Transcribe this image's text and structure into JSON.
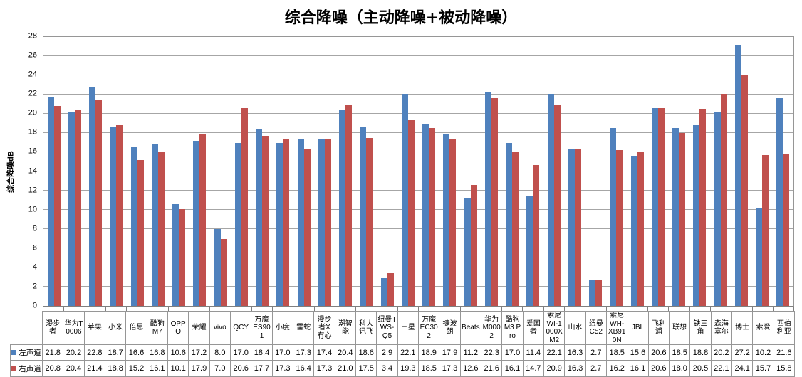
{
  "chart_data": {
    "type": "bar",
    "title": "综合降噪（主动降噪+被动降噪）",
    "xlabel": "",
    "ylabel": "综合降噪dB",
    "ylim": [
      0,
      28
    ],
    "ytick_step": 2,
    "grid": true,
    "legend_position": "table-row-headers",
    "categories": [
      "漫步者",
      "华为T0006",
      "苹果",
      "小米",
      "倍思",
      "酷狗M7",
      "OPPO",
      "荣耀",
      "vivo",
      "QCY",
      "万魔ES901",
      "小度",
      "雷蛇",
      "漫步者X冇心",
      "潮智能",
      "科大讯飞",
      "纽曼TWS-Q5",
      "三星",
      "万魔EC302",
      "捷波朗",
      "Beats",
      "华为M0002",
      "酷狗M3 Pro",
      "爱国者",
      "索尼WI-1000XM2",
      "山水",
      "纽曼C52",
      "索尼WH-XB910N",
      "JBL",
      "飞利浦",
      "联想",
      "铁三角",
      "森海塞尔",
      "博士",
      "索爱",
      "西伯利亚"
    ],
    "series": [
      {
        "name": "左声道",
        "color": "#4F81BD",
        "values": [
          21.8,
          20.2,
          22.8,
          18.7,
          16.6,
          16.8,
          10.6,
          17.2,
          8.0,
          17.0,
          18.4,
          17.0,
          17.3,
          17.4,
          20.4,
          18.6,
          2.9,
          22.1,
          18.9,
          17.9,
          11.2,
          22.3,
          17.0,
          11.4,
          22.1,
          16.3,
          2.7,
          18.5,
          15.6,
          20.6,
          18.5,
          18.8,
          20.2,
          27.2,
          10.2,
          21.6
        ]
      },
      {
        "name": "右声道",
        "color": "#C0504D",
        "values": [
          20.8,
          20.4,
          21.4,
          18.8,
          15.2,
          16.1,
          10.1,
          17.9,
          7.0,
          20.6,
          17.7,
          17.3,
          16.4,
          17.3,
          21.0,
          17.5,
          3.4,
          19.3,
          18.5,
          17.3,
          12.6,
          21.6,
          16.1,
          14.7,
          20.9,
          16.3,
          2.7,
          16.2,
          16.1,
          20.6,
          18.0,
          20.5,
          22.1,
          24.1,
          15.7,
          15.8
        ]
      }
    ]
  },
  "colors": {
    "series1": "#4F81BD",
    "series2": "#C0504D",
    "gridline": "#A6A6A6",
    "axis": "#7F7F7F",
    "table_border": "#969696",
    "background": "#FFFFFF",
    "text": "#000000"
  }
}
